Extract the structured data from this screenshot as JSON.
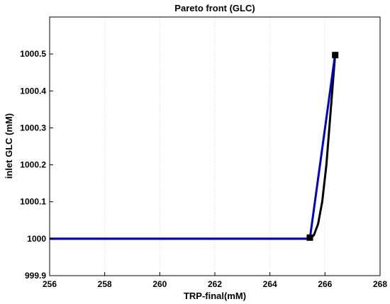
{
  "chart_data": {
    "type": "line",
    "title": "Pareto front (GLC)",
    "xlabel": "TRP-final(mM)",
    "ylabel": "inlet GLC (mM)",
    "xlim": [
      256,
      268
    ],
    "ylim": [
      999.9,
      1000.6
    ],
    "xticks": [
      "256",
      "258",
      "260",
      "262",
      "264",
      "266",
      "268"
    ],
    "yticks": [
      "999.9",
      "1000",
      "1000.1",
      "1000.2",
      "1000.3",
      "1000.4",
      "1000.5"
    ],
    "grid": "vertical-dotted",
    "series": [
      {
        "color": "#000000",
        "style": "curve",
        "x": [
          256,
          265.45,
          265.6,
          265.75,
          265.9,
          266.05,
          266.2,
          266.37
        ],
        "y": [
          1000.0,
          1000.0,
          1000.01,
          1000.04,
          1000.1,
          1000.2,
          1000.34,
          1000.5
        ]
      },
      {
        "color": "#0000cc",
        "style": "line",
        "x": [
          256,
          265.45,
          266.37
        ],
        "y": [
          1000.0,
          1000.0,
          1000.5
        ]
      }
    ],
    "markers": {
      "color": "#000000",
      "shape": "square",
      "x": [
        265.45,
        266.37
      ],
      "y": [
        1000.003,
        1000.497
      ]
    }
  }
}
